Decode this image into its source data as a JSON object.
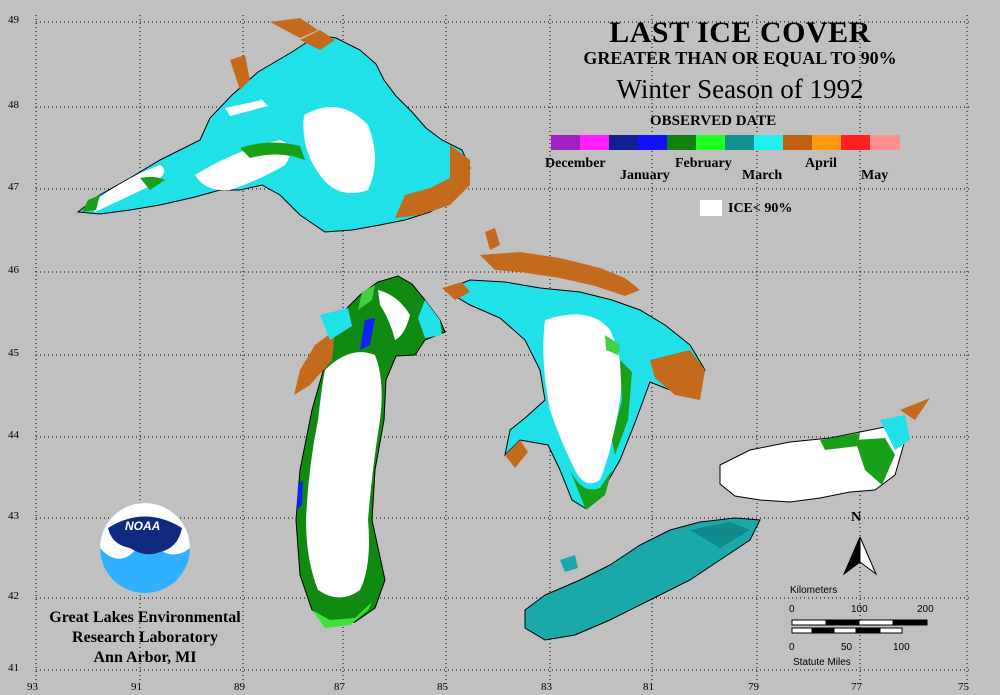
{
  "title": {
    "line1": "LAST ICE COVER",
    "line2": "GREATER THAN OR EQUAL TO 90%",
    "line3": "Winter Season of 1992"
  },
  "legend": {
    "title": "OBSERVED DATE",
    "months": [
      "December",
      "January",
      "February",
      "March",
      "April",
      "May"
    ],
    "colors": [
      "#a020c0",
      "#ff20ff",
      "#102090",
      "#1010ff",
      "#108010",
      "#20ff20",
      "#109090",
      "#20f0f0",
      "#c06010",
      "#ff9a10",
      "#ff2020",
      "#ff9090"
    ],
    "ice_label": "ICE< 90%"
  },
  "lab": {
    "line1": "Great Lakes Environmental",
    "line2": "Research Laboratory",
    "line3": "Ann Arbor, MI"
  },
  "logo_text": "NOAA",
  "scale": {
    "km_label": "Kilometers",
    "km_ticks": [
      "0",
      "100",
      "200"
    ],
    "mi_ticks": [
      "0",
      "50",
      "100"
    ],
    "mi_label": "Statute Miles"
  },
  "north": "N",
  "axes": {
    "lon": [
      "93",
      "91",
      "89",
      "87",
      "85",
      "83",
      "81",
      "79",
      "77",
      "75"
    ],
    "lat": [
      "49",
      "48",
      "47",
      "46",
      "45",
      "44",
      "43",
      "42",
      "41"
    ]
  }
}
